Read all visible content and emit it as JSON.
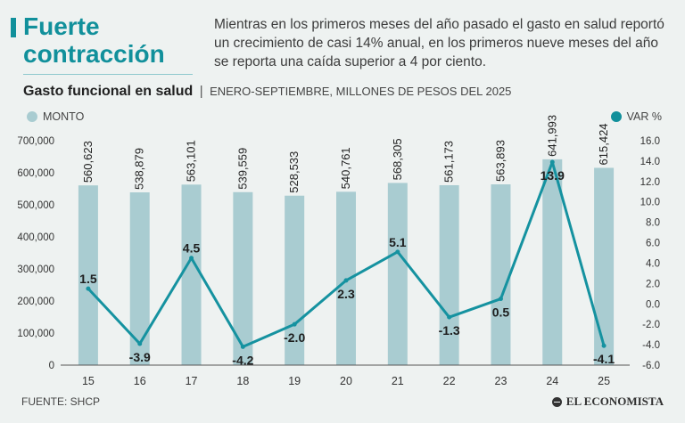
{
  "header": {
    "headline_line1": "Fuerte",
    "headline_line2": "contracción",
    "dek": "Mientras en los primeros meses del año pasado el gasto en salud reportó un crecimiento de casi 14% anual, en los primeros nueve meses del año se reporta una caída superior a 4 por ciento."
  },
  "subtitle": {
    "main": "Gasto funcional en salud",
    "separator": "|",
    "sub": "ENERO-SEPTIEMBRE, MILLONES DE PESOS DEL 2025"
  },
  "legend": {
    "bars_label": "MONTO",
    "line_label": "VAR %"
  },
  "footer": {
    "source": "FUENTE: SHCP",
    "brand": "EL ECONOMISTA"
  },
  "colors": {
    "accent": "#11909b",
    "bar": "#a9ccd1",
    "line": "#1592a0",
    "background": "#eef2f1",
    "text": "#222222"
  },
  "chart_data": {
    "type": "bar",
    "title": "Gasto funcional en salud",
    "subtitle": "ENERO-SEPTIEMBRE, MILLONES DE PESOS DEL 2025",
    "categories": [
      "15",
      "16",
      "17",
      "18",
      "19",
      "20",
      "21",
      "22",
      "23",
      "24",
      "25"
    ],
    "series": [
      {
        "name": "MONTO",
        "type": "bar",
        "axis": "left",
        "values": [
          560623,
          538879,
          563101,
          539559,
          528533,
          540761,
          568305,
          561173,
          563893,
          641993,
          615424
        ],
        "labels": [
          "560,623",
          "538,879",
          "563,101",
          "539,559",
          "528,533",
          "540,761",
          "568,305",
          "561,173",
          "563,893",
          "641,993",
          "615,424"
        ]
      },
      {
        "name": "VAR %",
        "type": "line",
        "axis": "right",
        "values": [
          1.5,
          -3.9,
          4.5,
          -4.2,
          -2.0,
          2.3,
          5.1,
          -1.3,
          0.5,
          13.9,
          -4.1
        ],
        "labels": [
          "1.5",
          "-3.9",
          "4.5",
          "-4.2",
          "-2.0",
          "2.3",
          "5.1",
          "-1.3",
          "0.5",
          "13.9",
          "-4.1"
        ]
      }
    ],
    "y_left": {
      "min": 0,
      "max": 700000,
      "ticks": [
        0,
        100000,
        200000,
        300000,
        400000,
        500000,
        600000,
        700000
      ],
      "tick_labels": [
        "0",
        "100,000",
        "200,000",
        "300,000",
        "400,000",
        "500,000",
        "600,000",
        "700,000"
      ]
    },
    "y_right": {
      "min": -6,
      "max": 16,
      "ticks": [
        -6,
        -4,
        -2,
        0,
        2,
        4,
        6,
        8,
        10,
        12,
        14,
        16
      ],
      "tick_labels": [
        "-6.0",
        "-4.0",
        "-2.0",
        "0.0",
        "2.0",
        "4.0",
        "6.0",
        "8.0",
        "10.0",
        "12.0",
        "14.0",
        "16.0"
      ]
    },
    "xlabel": "",
    "ylabel": "",
    "grid": false,
    "legend": "top"
  }
}
